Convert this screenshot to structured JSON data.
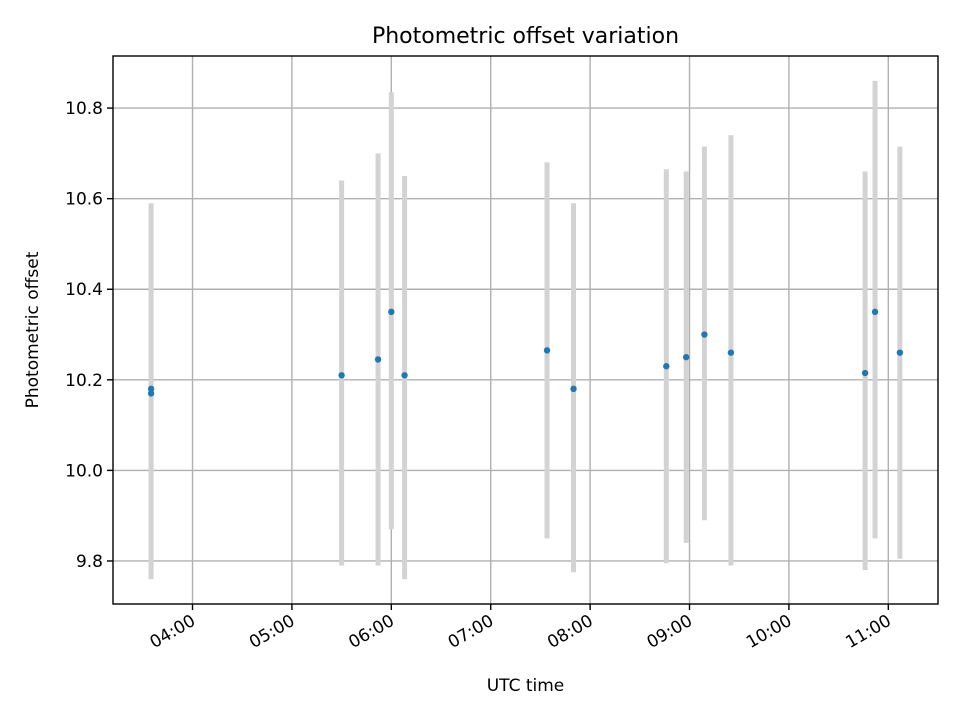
{
  "chart_data": {
    "type": "scatter",
    "title": "Photometric offset variation",
    "xlabel": "UTC time",
    "ylabel": "Photometric offset",
    "xlim": [
      "03:12",
      "11:30"
    ],
    "ylim": [
      9.705,
      10.915
    ],
    "x_ticks": [
      "04:00",
      "05:00",
      "06:00",
      "07:00",
      "08:00",
      "09:00",
      "10:00",
      "11:00"
    ],
    "y_ticks": [
      9.8,
      10.0,
      10.2,
      10.4,
      10.6,
      10.8
    ],
    "grid": true,
    "colors": {
      "point": "#1f77b4",
      "errorbar": "#d3d3d3"
    },
    "series": [
      {
        "points": [
          {
            "x": "03:35",
            "y": 10.17,
            "ylow": 9.76,
            "yhigh": 10.59
          },
          {
            "x": "03:35",
            "y": 10.18,
            "ylow": 9.77,
            "yhigh": 10.58
          },
          {
            "x": "05:30",
            "y": 10.21,
            "ylow": 9.79,
            "yhigh": 10.64
          },
          {
            "x": "05:52",
            "y": 10.245,
            "ylow": 9.79,
            "yhigh": 10.7
          },
          {
            "x": "06:00",
            "y": 10.35,
            "ylow": 9.87,
            "yhigh": 10.835
          },
          {
            "x": "06:08",
            "y": 10.21,
            "ylow": 9.76,
            "yhigh": 10.65
          },
          {
            "x": "07:34",
            "y": 10.265,
            "ylow": 9.85,
            "yhigh": 10.68
          },
          {
            "x": "07:50",
            "y": 10.18,
            "ylow": 9.775,
            "yhigh": 10.59
          },
          {
            "x": "08:46",
            "y": 10.23,
            "ylow": 9.795,
            "yhigh": 10.665
          },
          {
            "x": "08:58",
            "y": 10.25,
            "ylow": 9.84,
            "yhigh": 10.66
          },
          {
            "x": "09:09",
            "y": 10.3,
            "ylow": 9.89,
            "yhigh": 10.715
          },
          {
            "x": "09:25",
            "y": 10.26,
            "ylow": 9.79,
            "yhigh": 10.74
          },
          {
            "x": "10:46",
            "y": 10.215,
            "ylow": 9.78,
            "yhigh": 10.66
          },
          {
            "x": "10:52",
            "y": 10.35,
            "ylow": 9.85,
            "yhigh": 10.86
          },
          {
            "x": "11:07",
            "y": 10.26,
            "ylow": 9.805,
            "yhigh": 10.715
          }
        ]
      }
    ]
  }
}
